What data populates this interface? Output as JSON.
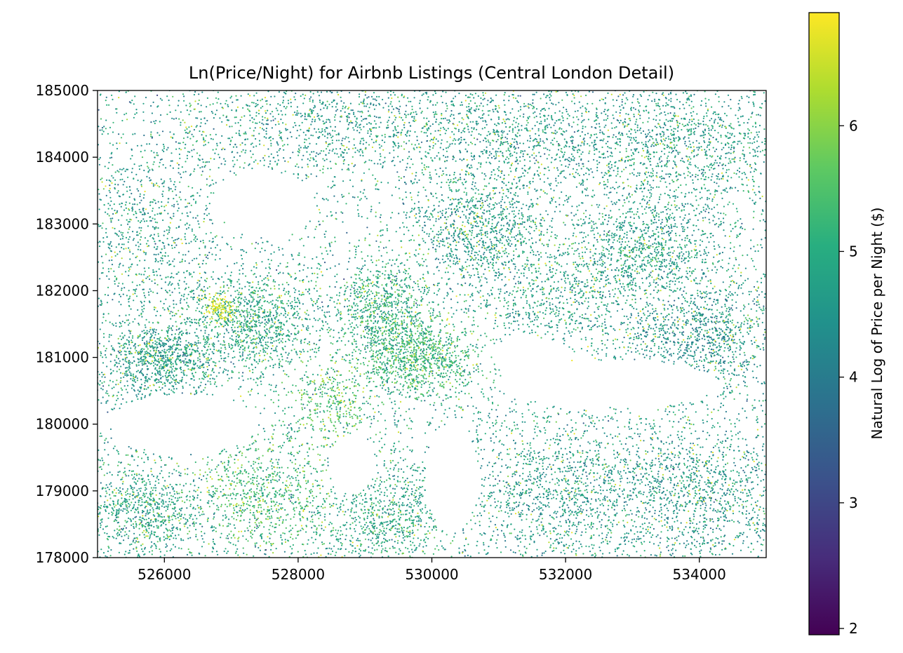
{
  "chart_data": {
    "type": "scatter",
    "title": "Ln(Price/Night) for Airbnb Listings (Central London Detail)",
    "xlabel": "",
    "ylabel": "",
    "xlim": [
      525000,
      535000
    ],
    "ylim": [
      178000,
      185000
    ],
    "xticks": [
      526000,
      528000,
      530000,
      532000,
      534000
    ],
    "xtick_labels": [
      "526000",
      "528000",
      "530000",
      "532000",
      "534000"
    ],
    "yticks": [
      178000,
      179000,
      180000,
      181000,
      182000,
      183000,
      184000,
      185000
    ],
    "ytick_labels": [
      "178000",
      "179000",
      "180000",
      "181000",
      "182000",
      "183000",
      "184000",
      "185000"
    ],
    "grid": false,
    "colormap": "viridis",
    "colorbar": {
      "label": "Natural Log of Price per Night ($)",
      "range": [
        1.95,
        6.9
      ],
      "ticks": [
        2,
        3,
        4,
        5,
        6
      ],
      "tick_labels": [
        "2",
        "3",
        "4",
        "5",
        "6"
      ]
    },
    "clusters": [
      {
        "x": 525900,
        "y": 180950,
        "sx": 450,
        "sy": 300,
        "n": 900,
        "v": 4.7
      },
      {
        "x": 527300,
        "y": 181500,
        "sx": 500,
        "sy": 400,
        "n": 1000,
        "v": 4.9
      },
      {
        "x": 529300,
        "y": 181700,
        "sx": 350,
        "sy": 350,
        "n": 700,
        "v": 5.0
      },
      {
        "x": 529800,
        "y": 181000,
        "sx": 450,
        "sy": 300,
        "n": 900,
        "v": 5.2
      },
      {
        "x": 530700,
        "y": 182900,
        "sx": 500,
        "sy": 400,
        "n": 800,
        "v": 4.6
      },
      {
        "x": 533200,
        "y": 182600,
        "sx": 600,
        "sy": 400,
        "n": 900,
        "v": 4.7
      },
      {
        "x": 534000,
        "y": 181300,
        "sx": 600,
        "sy": 450,
        "n": 900,
        "v": 4.4
      },
      {
        "x": 533800,
        "y": 184200,
        "sx": 900,
        "sy": 500,
        "n": 1000,
        "v": 4.6
      },
      {
        "x": 531500,
        "y": 184300,
        "sx": 900,
        "sy": 500,
        "n": 800,
        "v": 4.6
      },
      {
        "x": 528500,
        "y": 184500,
        "sx": 1200,
        "sy": 400,
        "n": 900,
        "v": 4.6
      },
      {
        "x": 525600,
        "y": 178700,
        "sx": 500,
        "sy": 400,
        "n": 800,
        "v": 4.8
      },
      {
        "x": 527500,
        "y": 178900,
        "sx": 500,
        "sy": 450,
        "n": 700,
        "v": 5.3
      },
      {
        "x": 529300,
        "y": 178600,
        "sx": 500,
        "sy": 400,
        "n": 700,
        "v": 4.9
      },
      {
        "x": 532300,
        "y": 179000,
        "sx": 1100,
        "sy": 550,
        "n": 1400,
        "v": 4.6
      },
      {
        "x": 534300,
        "y": 179000,
        "sx": 600,
        "sy": 500,
        "n": 600,
        "v": 4.5
      },
      {
        "x": 531800,
        "y": 181900,
        "sx": 600,
        "sy": 400,
        "n": 500,
        "v": 4.7
      },
      {
        "x": 528500,
        "y": 180300,
        "sx": 300,
        "sy": 300,
        "n": 300,
        "v": 5.5
      },
      {
        "x": 525700,
        "y": 182800,
        "sx": 500,
        "sy": 700,
        "n": 500,
        "v": 4.6
      },
      {
        "x": 526800,
        "y": 181750,
        "sx": 120,
        "sy": 100,
        "n": 120,
        "v": 6.7
      }
    ],
    "empty_regions": [
      {
        "cx": 527500,
        "cy": 183300,
        "rx": 700,
        "ry": 500
      },
      {
        "cx": 526300,
        "cy": 180000,
        "rx": 1100,
        "ry": 450
      },
      {
        "cx": 528800,
        "cy": 179400,
        "rx": 350,
        "ry": 450
      },
      {
        "cx": 532700,
        "cy": 180600,
        "rx": 1600,
        "ry": 350
      },
      {
        "cx": 530300,
        "cy": 179200,
        "rx": 400,
        "ry": 800
      },
      {
        "cx": 531500,
        "cy": 181000,
        "rx": 600,
        "ry": 300
      }
    ]
  }
}
